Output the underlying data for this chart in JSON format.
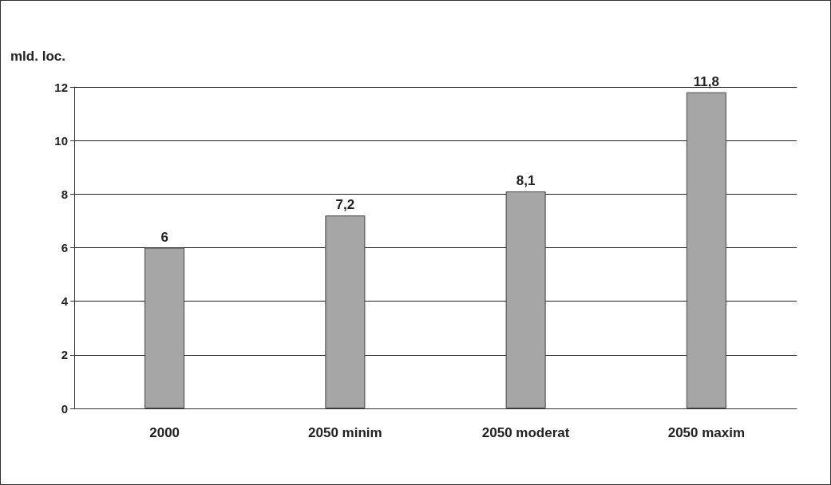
{
  "chart_data": {
    "type": "bar",
    "ylabel": "mld. loc.",
    "categories": [
      "2000",
      "2050 minim",
      "2050 moderat",
      "2050 maxim"
    ],
    "values": [
      6,
      7.2,
      8.1,
      11.8
    ],
    "value_labels": [
      "6",
      "7,2",
      "8,1",
      "11,8"
    ],
    "color": "#a6a6a6",
    "ylim": [
      0,
      12
    ],
    "yticks": [
      0,
      2,
      4,
      6,
      8,
      10,
      12
    ],
    "grid": "y"
  }
}
